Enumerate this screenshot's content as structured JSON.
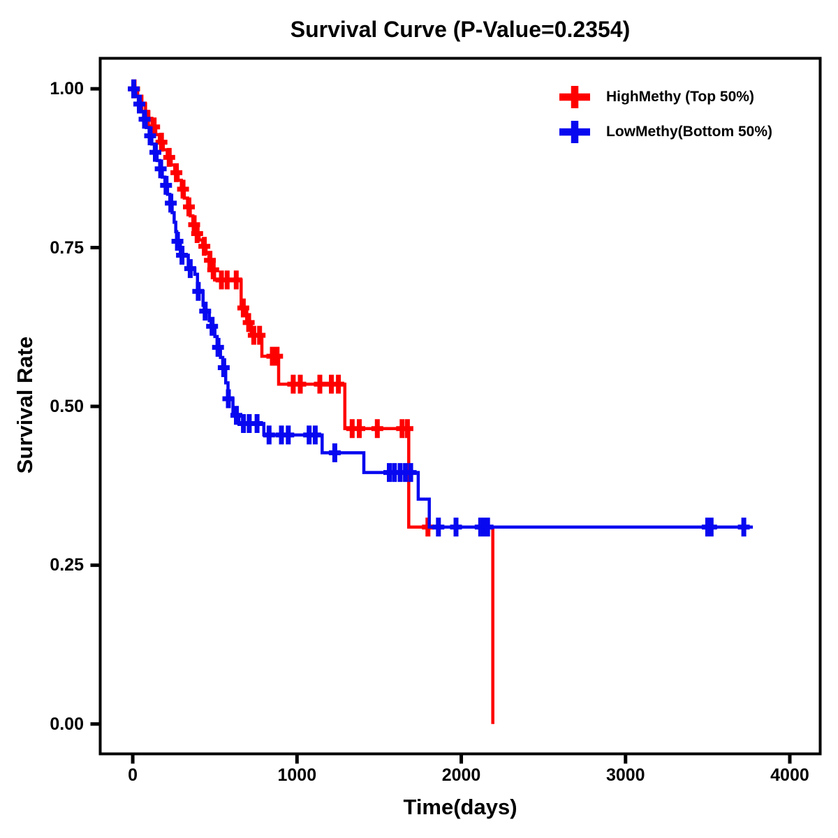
{
  "page": {
    "background": "#FFFFFF"
  },
  "chart_data": {
    "type": "line",
    "subtype": "kaplan-meier-step-survival",
    "title": "Survival Curve (P-Value=0.2354)",
    "p_value": "0.2354",
    "xlabel": "Time(days)",
    "ylabel": "Survival Rate",
    "grid": false,
    "legend_position": "top-right",
    "axis_color": "#000000",
    "text_color": "#000000",
    "xlim": [
      -198,
      4185
    ],
    "ylim": [
      -0.047,
      1.048
    ],
    "x_ticks": {
      "values": [
        0,
        1000,
        2000,
        3000,
        4000
      ],
      "labels": [
        "0",
        "1000",
        "2000",
        "3000",
        "4000"
      ]
    },
    "y_ticks": {
      "values": [
        0,
        0.25,
        0.5,
        0.75,
        1.0
      ],
      "labels": [
        "0.00",
        "0.25",
        "0.50",
        "0.75",
        "1.00"
      ]
    },
    "series": [
      {
        "name": "HighMethy (Top 50%)",
        "color": "#FF0000",
        "steps": [
          [
            0,
            1.0
          ],
          [
            30,
            0.988
          ],
          [
            55,
            0.976
          ],
          [
            78,
            0.964
          ],
          [
            98,
            0.952
          ],
          [
            118,
            0.94
          ],
          [
            140,
            0.928
          ],
          [
            162,
            0.916
          ],
          [
            186,
            0.904
          ],
          [
            210,
            0.892
          ],
          [
            234,
            0.88
          ],
          [
            256,
            0.868
          ],
          [
            276,
            0.856
          ],
          [
            296,
            0.842
          ],
          [
            314,
            0.828
          ],
          [
            334,
            0.814
          ],
          [
            350,
            0.8
          ],
          [
            366,
            0.786
          ],
          [
            382,
            0.772
          ],
          [
            404,
            0.762
          ],
          [
            426,
            0.752
          ],
          [
            446,
            0.741
          ],
          [
            464,
            0.73
          ],
          [
            481,
            0.715
          ],
          [
            498,
            0.699
          ],
          [
            660,
            0.655
          ],
          [
            694,
            0.632
          ],
          [
            722,
            0.612
          ],
          [
            786,
            0.579
          ],
          [
            888,
            0.535
          ],
          [
            1291,
            0.465
          ],
          [
            1680,
            0.31
          ],
          [
            2192,
            0.0
          ]
        ],
        "censors": [
          [
            8,
            1.0
          ],
          [
            50,
            0.976
          ],
          [
            90,
            0.952
          ],
          [
            130,
            0.94
          ],
          [
            175,
            0.916
          ],
          [
            222,
            0.892
          ],
          [
            266,
            0.868
          ],
          [
            306,
            0.842
          ],
          [
            342,
            0.814
          ],
          [
            374,
            0.786
          ],
          [
            392,
            0.772
          ],
          [
            436,
            0.752
          ],
          [
            470,
            0.73
          ],
          [
            490,
            0.715
          ],
          [
            540,
            0.699
          ],
          [
            575,
            0.699
          ],
          [
            630,
            0.699
          ],
          [
            673,
            0.655
          ],
          [
            706,
            0.632
          ],
          [
            737,
            0.612
          ],
          [
            772,
            0.612
          ],
          [
            850,
            0.579
          ],
          [
            879,
            0.579
          ],
          [
            977,
            0.535
          ],
          [
            1020,
            0.535
          ],
          [
            1139,
            0.535
          ],
          [
            1209,
            0.535
          ],
          [
            1252,
            0.535
          ],
          [
            1336,
            0.465
          ],
          [
            1379,
            0.465
          ],
          [
            1489,
            0.465
          ],
          [
            1640,
            0.465
          ],
          [
            1672,
            0.465
          ],
          [
            1797,
            0.31
          ]
        ]
      },
      {
        "name": "LowMethy(Bottom 50%)",
        "color": "#0808F0",
        "end_day": 3775,
        "steps": [
          [
            0,
            1.0
          ],
          [
            18,
            0.988
          ],
          [
            34,
            0.976
          ],
          [
            50,
            0.964
          ],
          [
            66,
            0.952
          ],
          [
            82,
            0.939
          ],
          [
            100,
            0.926
          ],
          [
            116,
            0.913
          ],
          [
            132,
            0.9
          ],
          [
            148,
            0.887
          ],
          [
            164,
            0.874
          ],
          [
            180,
            0.861
          ],
          [
            196,
            0.848
          ],
          [
            212,
            0.834
          ],
          [
            226,
            0.82
          ],
          [
            240,
            0.805
          ],
          [
            252,
            0.79
          ],
          [
            262,
            0.775
          ],
          [
            268,
            0.76
          ],
          [
            290,
            0.738
          ],
          [
            338,
            0.717
          ],
          [
            378,
            0.708
          ],
          [
            394,
            0.681
          ],
          [
            428,
            0.659
          ],
          [
            436,
            0.65
          ],
          [
            466,
            0.635
          ],
          [
            478,
            0.626
          ],
          [
            500,
            0.61
          ],
          [
            514,
            0.593
          ],
          [
            534,
            0.577
          ],
          [
            548,
            0.561
          ],
          [
            566,
            0.537
          ],
          [
            580,
            0.512
          ],
          [
            610,
            0.486
          ],
          [
            646,
            0.473
          ],
          [
            798,
            0.455
          ],
          [
            1153,
            0.427
          ],
          [
            1407,
            0.396
          ],
          [
            1738,
            0.354
          ],
          [
            1805,
            0.31
          ]
        ],
        "censors": [
          [
            6,
            1.0
          ],
          [
            40,
            0.976
          ],
          [
            72,
            0.952
          ],
          [
            106,
            0.926
          ],
          [
            138,
            0.9
          ],
          [
            170,
            0.874
          ],
          [
            203,
            0.848
          ],
          [
            232,
            0.82
          ],
          [
            272,
            0.76
          ],
          [
            300,
            0.738
          ],
          [
            350,
            0.717
          ],
          [
            399,
            0.681
          ],
          [
            441,
            0.65
          ],
          [
            483,
            0.626
          ],
          [
            519,
            0.593
          ],
          [
            554,
            0.561
          ],
          [
            582,
            0.512
          ],
          [
            631,
            0.486
          ],
          [
            674,
            0.473
          ],
          [
            709,
            0.473
          ],
          [
            757,
            0.473
          ],
          [
            830,
            0.455
          ],
          [
            905,
            0.455
          ],
          [
            947,
            0.455
          ],
          [
            1074,
            0.455
          ],
          [
            1111,
            0.455
          ],
          [
            1230,
            0.427
          ],
          [
            1562,
            0.396
          ],
          [
            1593,
            0.396
          ],
          [
            1628,
            0.396
          ],
          [
            1660,
            0.396
          ],
          [
            1692,
            0.396
          ],
          [
            1861,
            0.31
          ],
          [
            1968,
            0.31
          ],
          [
            2118,
            0.31
          ],
          [
            2140,
            0.31
          ],
          [
            2160,
            0.31
          ],
          [
            3500,
            0.31
          ],
          [
            3521,
            0.31
          ],
          [
            3720,
            0.31
          ]
        ]
      }
    ]
  }
}
